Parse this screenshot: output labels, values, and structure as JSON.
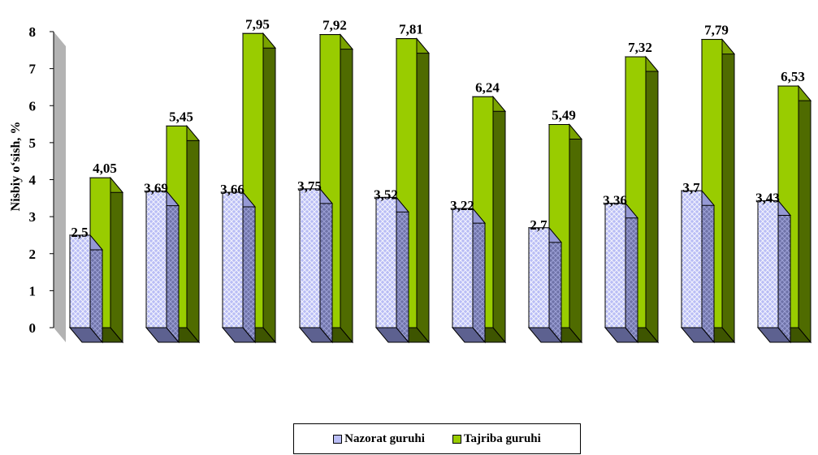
{
  "chart_data": {
    "type": "bar",
    "title": "",
    "xlabel": "",
    "ylabel": "Nisbiy o‘sish, %",
    "ylim": [
      0,
      8
    ],
    "yticks": [
      "0",
      "1",
      "2",
      "3",
      "4",
      "5",
      "6",
      "7",
      "8"
    ],
    "categories": [
      "",
      "",
      "",
      "",
      "",
      "",
      "",
      "",
      "",
      ""
    ],
    "series": [
      {
        "name": "Nazorat guruhi",
        "values": [
          2.5,
          3.69,
          3.66,
          3.75,
          3.52,
          3.22,
          2.7,
          3.36,
          3.7,
          3.43
        ],
        "labels": [
          "2,5",
          "3,69",
          "3,66",
          "3,75",
          "3,52",
          "3,22",
          "2,7",
          "3,36",
          "3,7",
          "3,43"
        ],
        "color": "#b9bdf5",
        "pattern": "crosshatch"
      },
      {
        "name": "Tajriba guruhi",
        "values": [
          4.05,
          5.45,
          7.95,
          7.92,
          7.81,
          6.24,
          5.49,
          7.32,
          7.79,
          6.53
        ],
        "labels": [
          "4,05",
          "5,45",
          "7,95",
          "7,92",
          "7,81",
          "6,24",
          "5,49",
          "7,32",
          "7,79",
          "6,53"
        ],
        "color": "#99cc00",
        "side_color": "#4f6b00"
      }
    ],
    "grid": false,
    "legend_position": "bottom",
    "style": "3d-column"
  }
}
